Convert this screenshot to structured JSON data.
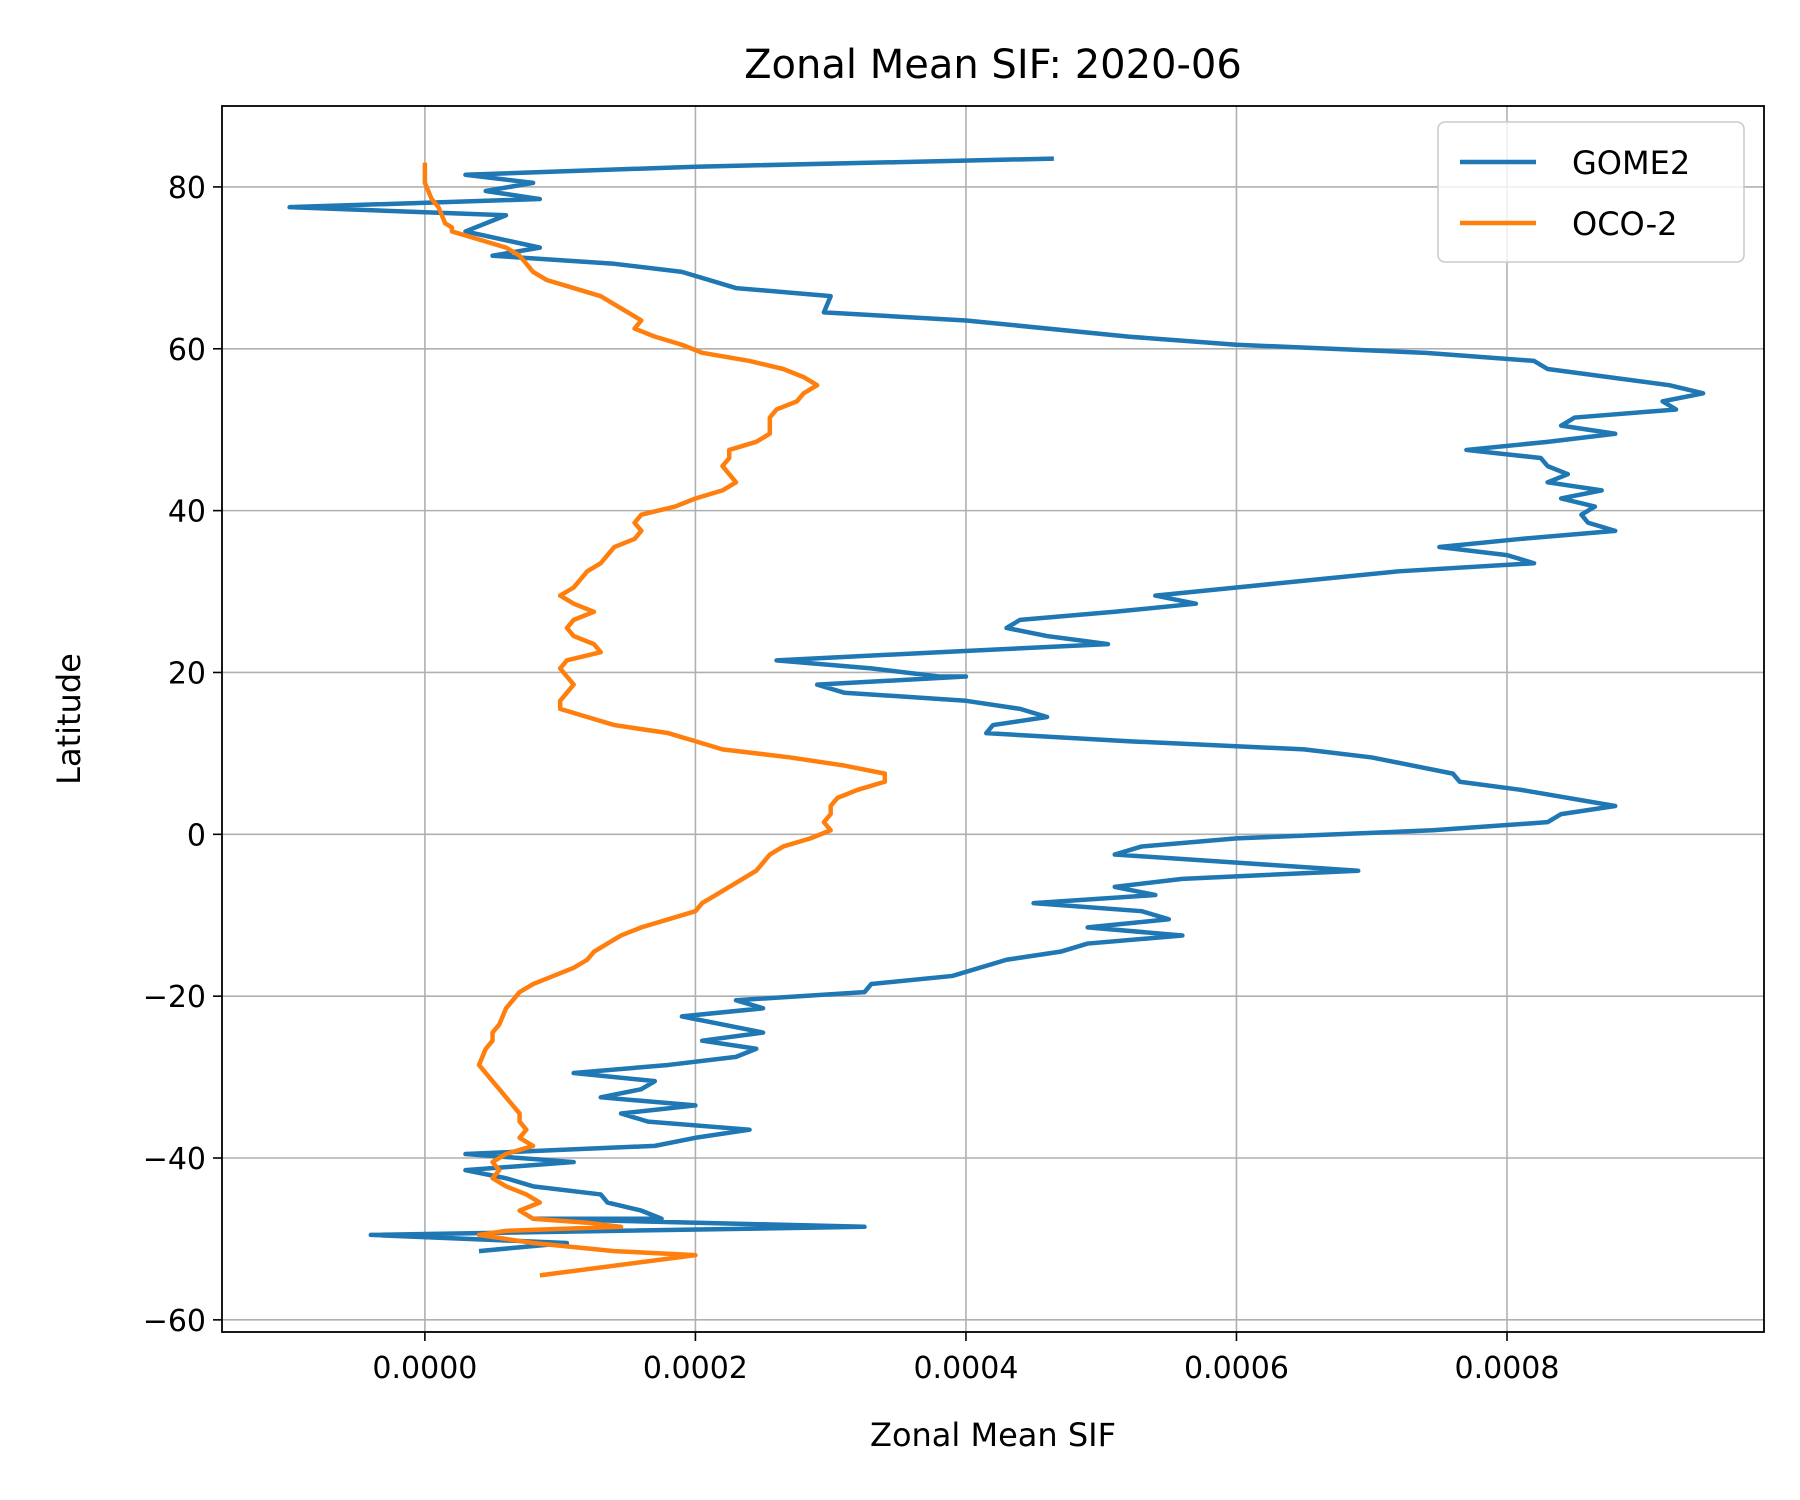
{
  "chart_data": {
    "type": "line",
    "title": "Zonal Mean SIF: 2020-06",
    "xlabel": "Zonal Mean SIF",
    "ylabel": "Latitude",
    "xlim": [
      -0.00015,
      0.00099
    ],
    "ylim": [
      -61.5,
      90
    ],
    "xticks": [
      0.0,
      0.0002,
      0.0004,
      0.0006,
      0.0008
    ],
    "xtick_labels": [
      "0.0000",
      "0.0002",
      "0.0004",
      "0.0006",
      "0.0008"
    ],
    "yticks": [
      -60,
      -40,
      -20,
      0,
      20,
      40,
      60,
      80
    ],
    "ytick_labels": [
      "−60",
      "−40",
      "−20",
      "0",
      "20",
      "40",
      "60",
      "80"
    ],
    "grid": true,
    "legend_position": "top-right",
    "series": [
      {
        "name": "GOME2",
        "color": "#1f77b4",
        "points": [
          [
            0.000465,
            83.5
          ],
          [
            0.0002,
            82.5
          ],
          [
            3e-05,
            81.5
          ],
          [
            8e-05,
            80.5
          ],
          [
            4.5e-05,
            79.5
          ],
          [
            8.5e-05,
            78.5
          ],
          [
            -0.0001,
            77.5
          ],
          [
            6e-05,
            76.5
          ],
          [
            3e-05,
            74.5
          ],
          [
            8.5e-05,
            72.5
          ],
          [
            5e-05,
            71.5
          ],
          [
            0.00014,
            70.5
          ],
          [
            0.00019,
            69.5
          ],
          [
            0.00023,
            67.5
          ],
          [
            0.0003,
            66.5
          ],
          [
            0.000295,
            64.5
          ],
          [
            0.0004,
            63.5
          ],
          [
            0.00052,
            61.5
          ],
          [
            0.0006,
            60.5
          ],
          [
            0.00074,
            59.5
          ],
          [
            0.00082,
            58.5
          ],
          [
            0.00083,
            57.5
          ],
          [
            0.00092,
            55.5
          ],
          [
            0.000945,
            54.5
          ],
          [
            0.000915,
            53.5
          ],
          [
            0.000925,
            52.5
          ],
          [
            0.00085,
            51.5
          ],
          [
            0.00084,
            50.5
          ],
          [
            0.00088,
            49.5
          ],
          [
            0.00083,
            48.5
          ],
          [
            0.00077,
            47.5
          ],
          [
            0.000825,
            46.5
          ],
          [
            0.00083,
            45.5
          ],
          [
            0.000845,
            44.5
          ],
          [
            0.00083,
            43.5
          ],
          [
            0.00087,
            42.5
          ],
          [
            0.00084,
            41.5
          ],
          [
            0.000865,
            40.5
          ],
          [
            0.000855,
            39.5
          ],
          [
            0.00086,
            38.5
          ],
          [
            0.00088,
            37.5
          ],
          [
            0.00081,
            36.5
          ],
          [
            0.00075,
            35.5
          ],
          [
            0.0008,
            34.5
          ],
          [
            0.00082,
            33.5
          ],
          [
            0.00072,
            32.5
          ],
          [
            0.0006,
            30.5
          ],
          [
            0.00054,
            29.5
          ],
          [
            0.00057,
            28.5
          ],
          [
            0.00051,
            27.5
          ],
          [
            0.00044,
            26.5
          ],
          [
            0.00043,
            25.5
          ],
          [
            0.00046,
            24.5
          ],
          [
            0.000505,
            23.5
          ],
          [
            0.00038,
            22.5
          ],
          [
            0.00026,
            21.5
          ],
          [
            0.00033,
            20.5
          ],
          [
            0.00038,
            19.5
          ],
          [
            0.0004,
            19.5
          ],
          [
            0.00029,
            18.5
          ],
          [
            0.00031,
            17.5
          ],
          [
            0.0004,
            16.5
          ],
          [
            0.00044,
            15.5
          ],
          [
            0.00046,
            14.5
          ],
          [
            0.00042,
            13.5
          ],
          [
            0.000415,
            12.5
          ],
          [
            0.00052,
            11.5
          ],
          [
            0.00065,
            10.5
          ],
          [
            0.0007,
            9.5
          ],
          [
            0.00076,
            7.5
          ],
          [
            0.000765,
            6.5
          ],
          [
            0.00081,
            5.5
          ],
          [
            0.00088,
            3.5
          ],
          [
            0.00084,
            2.5
          ],
          [
            0.00083,
            1.5
          ],
          [
            0.000745,
            0.5
          ],
          [
            0.0006,
            -0.5
          ],
          [
            0.00053,
            -1.5
          ],
          [
            0.00051,
            -2.5
          ],
          [
            0.0006,
            -3.5
          ],
          [
            0.00069,
            -4.5
          ],
          [
            0.00056,
            -5.5
          ],
          [
            0.00051,
            -6.5
          ],
          [
            0.00054,
            -7.5
          ],
          [
            0.00045,
            -8.5
          ],
          [
            0.00053,
            -9.5
          ],
          [
            0.00055,
            -10.5
          ],
          [
            0.00049,
            -11.5
          ],
          [
            0.00056,
            -12.5
          ],
          [
            0.00049,
            -13.5
          ],
          [
            0.00047,
            -14.5
          ],
          [
            0.00043,
            -15.5
          ],
          [
            0.00039,
            -17.5
          ],
          [
            0.00033,
            -18.5
          ],
          [
            0.000325,
            -19.5
          ],
          [
            0.00023,
            -20.5
          ],
          [
            0.00025,
            -21.5
          ],
          [
            0.00019,
            -22.5
          ],
          [
            0.00025,
            -24.5
          ],
          [
            0.000205,
            -25.5
          ],
          [
            0.000245,
            -26.5
          ],
          [
            0.00023,
            -27.5
          ],
          [
            0.00018,
            -28.5
          ],
          [
            0.00011,
            -29.5
          ],
          [
            0.00017,
            -30.5
          ],
          [
            0.00016,
            -31.5
          ],
          [
            0.00013,
            -32.5
          ],
          [
            0.0002,
            -33.5
          ],
          [
            0.000145,
            -34.5
          ],
          [
            0.000165,
            -35.5
          ],
          [
            0.00024,
            -36.5
          ],
          [
            0.0002,
            -37.5
          ],
          [
            0.00017,
            -38.5
          ],
          [
            3e-05,
            -39.5
          ],
          [
            0.00011,
            -40.5
          ],
          [
            3e-05,
            -41.5
          ],
          [
            6e-05,
            -42.5
          ],
          [
            8e-05,
            -43.5
          ],
          [
            0.00013,
            -44.5
          ],
          [
            0.000135,
            -45.5
          ],
          [
            0.00016,
            -46.5
          ],
          [
            0.000175,
            -47.5
          ],
          [
            8e-05,
            -47.5
          ],
          [
            0.000325,
            -48.5
          ],
          [
            -4e-05,
            -49.5
          ],
          [
            0.000105,
            -50.5
          ],
          [
            4e-05,
            -51.5
          ]
        ]
      },
      {
        "name": "OCO-2",
        "color": "#ff7f0e",
        "points": [
          [
            0.0,
            83.0
          ],
          [
            0.0,
            80.5
          ],
          [
            5e-06,
            78.5
          ],
          [
            1e-05,
            77.5
          ],
          [
            1.5e-05,
            75.5
          ],
          [
            2e-05,
            75.0
          ],
          [
            2e-05,
            74.5
          ],
          [
            4e-05,
            73.5
          ],
          [
            6e-05,
            72.5
          ],
          [
            7e-05,
            71.5
          ],
          [
            7.5e-05,
            70.5
          ],
          [
            8e-05,
            69.5
          ],
          [
            9e-05,
            68.5
          ],
          [
            0.00011,
            67.5
          ],
          [
            0.00013,
            66.5
          ],
          [
            0.00014,
            65.5
          ],
          [
            0.00015,
            64.5
          ],
          [
            0.00016,
            63.5
          ],
          [
            0.000155,
            62.5
          ],
          [
            0.00017,
            61.5
          ],
          [
            0.00019,
            60.5
          ],
          [
            0.000205,
            59.5
          ],
          [
            0.00024,
            58.5
          ],
          [
            0.000265,
            57.5
          ],
          [
            0.00028,
            56.5
          ],
          [
            0.00029,
            55.5
          ],
          [
            0.00028,
            54.5
          ],
          [
            0.000275,
            53.5
          ],
          [
            0.00026,
            52.5
          ],
          [
            0.000255,
            51.5
          ],
          [
            0.000255,
            49.5
          ],
          [
            0.000245,
            48.5
          ],
          [
            0.000225,
            47.5
          ],
          [
            0.000225,
            46.5
          ],
          [
            0.00022,
            45.5
          ],
          [
            0.000225,
            44.5
          ],
          [
            0.00023,
            43.5
          ],
          [
            0.00022,
            42.5
          ],
          [
            0.0002,
            41.5
          ],
          [
            0.000185,
            40.5
          ],
          [
            0.00016,
            39.5
          ],
          [
            0.000155,
            38.5
          ],
          [
            0.00016,
            37.5
          ],
          [
            0.000155,
            36.5
          ],
          [
            0.00014,
            35.5
          ],
          [
            0.000135,
            34.5
          ],
          [
            0.00013,
            33.5
          ],
          [
            0.00012,
            32.5
          ],
          [
            0.000115,
            31.5
          ],
          [
            0.00011,
            30.5
          ],
          [
            0.0001,
            29.5
          ],
          [
            0.00011,
            28.5
          ],
          [
            0.000125,
            27.5
          ],
          [
            0.00011,
            26.5
          ],
          [
            0.000105,
            25.5
          ],
          [
            0.00011,
            24.5
          ],
          [
            0.000125,
            23.5
          ],
          [
            0.00013,
            22.5
          ],
          [
            0.000105,
            21.5
          ],
          [
            0.0001,
            20.5
          ],
          [
            0.000105,
            19.5
          ],
          [
            0.00011,
            18.5
          ],
          [
            0.000105,
            17.5
          ],
          [
            0.0001,
            16.5
          ],
          [
            0.0001,
            15.5
          ],
          [
            0.00012,
            14.5
          ],
          [
            0.00014,
            13.5
          ],
          [
            0.00018,
            12.5
          ],
          [
            0.0002,
            11.5
          ],
          [
            0.00022,
            10.5
          ],
          [
            0.00027,
            9.5
          ],
          [
            0.00031,
            8.5
          ],
          [
            0.00034,
            7.5
          ],
          [
            0.00034,
            6.5
          ],
          [
            0.00032,
            5.5
          ],
          [
            0.000305,
            4.5
          ],
          [
            0.0003,
            3.5
          ],
          [
            0.0003,
            2.5
          ],
          [
            0.000295,
            1.5
          ],
          [
            0.0003,
            0.5
          ],
          [
            0.000285,
            -0.5
          ],
          [
            0.000265,
            -1.5
          ],
          [
            0.000255,
            -2.5
          ],
          [
            0.00025,
            -3.5
          ],
          [
            0.000245,
            -4.5
          ],
          [
            0.000235,
            -5.5
          ],
          [
            0.000225,
            -6.5
          ],
          [
            0.000215,
            -7.5
          ],
          [
            0.000205,
            -8.5
          ],
          [
            0.0002,
            -9.5
          ],
          [
            0.00018,
            -10.5
          ],
          [
            0.00016,
            -11.5
          ],
          [
            0.000145,
            -12.5
          ],
          [
            0.000135,
            -13.5
          ],
          [
            0.000125,
            -14.5
          ],
          [
            0.00012,
            -15.5
          ],
          [
            0.00011,
            -16.5
          ],
          [
            9.5e-05,
            -17.5
          ],
          [
            8e-05,
            -18.5
          ],
          [
            7e-05,
            -19.5
          ],
          [
            6e-05,
            -21.5
          ],
          [
            5.5e-05,
            -23.5
          ],
          [
            5e-05,
            -24.5
          ],
          [
            5e-05,
            -25.5
          ],
          [
            4.5e-05,
            -26.5
          ],
          [
            4e-05,
            -28.5
          ],
          [
            4.5e-05,
            -29.5
          ],
          [
            5e-05,
            -30.5
          ],
          [
            5.5e-05,
            -31.5
          ],
          [
            6e-05,
            -32.5
          ],
          [
            6.5e-05,
            -33.5
          ],
          [
            7e-05,
            -34.5
          ],
          [
            7e-05,
            -35.5
          ],
          [
            7.5e-05,
            -36.5
          ],
          [
            7e-05,
            -37.5
          ],
          [
            8e-05,
            -38.5
          ],
          [
            6e-05,
            -39.5
          ],
          [
            5e-05,
            -40.5
          ],
          [
            5.5e-05,
            -41.5
          ],
          [
            5e-05,
            -42.5
          ],
          [
            6e-05,
            -43.5
          ],
          [
            7.5e-05,
            -44.5
          ],
          [
            8.5e-05,
            -45.5
          ],
          [
            7e-05,
            -46.5
          ],
          [
            8e-05,
            -47.5
          ],
          [
            0.00012,
            -48.0
          ],
          [
            0.000145,
            -48.5
          ],
          [
            6e-05,
            -49.0
          ],
          [
            4e-05,
            -49.5
          ],
          [
            8e-05,
            -50.5
          ],
          [
            0.00014,
            -51.5
          ],
          [
            0.0002,
            -52.0
          ],
          [
            8.5e-05,
            -54.5
          ]
        ]
      }
    ]
  }
}
